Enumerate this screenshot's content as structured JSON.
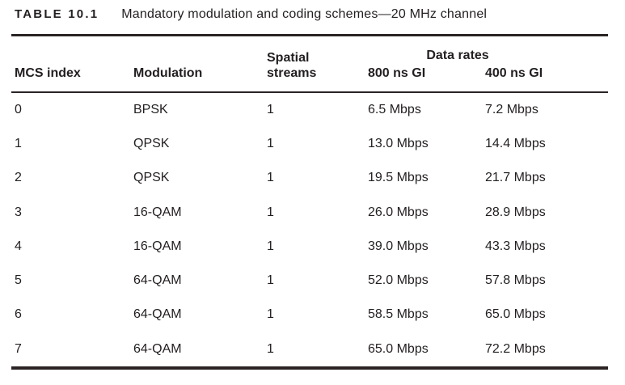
{
  "caption": {
    "label": "TABLE 10.1",
    "title": "Mandatory modulation and coding schemes—20 MHz channel"
  },
  "table": {
    "group_header": "Data rates",
    "columns": {
      "mcs_index": "MCS index",
      "modulation": "Modulation",
      "spatial_streams": "Spatial\nstreams",
      "gi_800": "800 ns GI",
      "gi_400": "400 ns GI"
    },
    "rows": [
      [
        "0",
        "BPSK",
        "1",
        "6.5 Mbps",
        "7.2 Mbps"
      ],
      [
        "1",
        "QPSK",
        "1",
        "13.0 Mbps",
        "14.4 Mbps"
      ],
      [
        "2",
        "QPSK",
        "1",
        "19.5 Mbps",
        "21.7 Mbps"
      ],
      [
        "3",
        "16-QAM",
        "1",
        "26.0 Mbps",
        "28.9 Mbps"
      ],
      [
        "4",
        "16-QAM",
        "1",
        "39.0 Mbps",
        "43.3 Mbps"
      ],
      [
        "5",
        "64-QAM",
        "1",
        "52.0 Mbps",
        "57.8 Mbps"
      ],
      [
        "6",
        "64-QAM",
        "1",
        "58.5 Mbps",
        "65.0 Mbps"
      ],
      [
        "7",
        "64-QAM",
        "1",
        "65.0 Mbps",
        "72.2 Mbps"
      ]
    ]
  },
  "colors": {
    "text": "#231f20",
    "rule": "#2a2425",
    "background": "#ffffff"
  }
}
